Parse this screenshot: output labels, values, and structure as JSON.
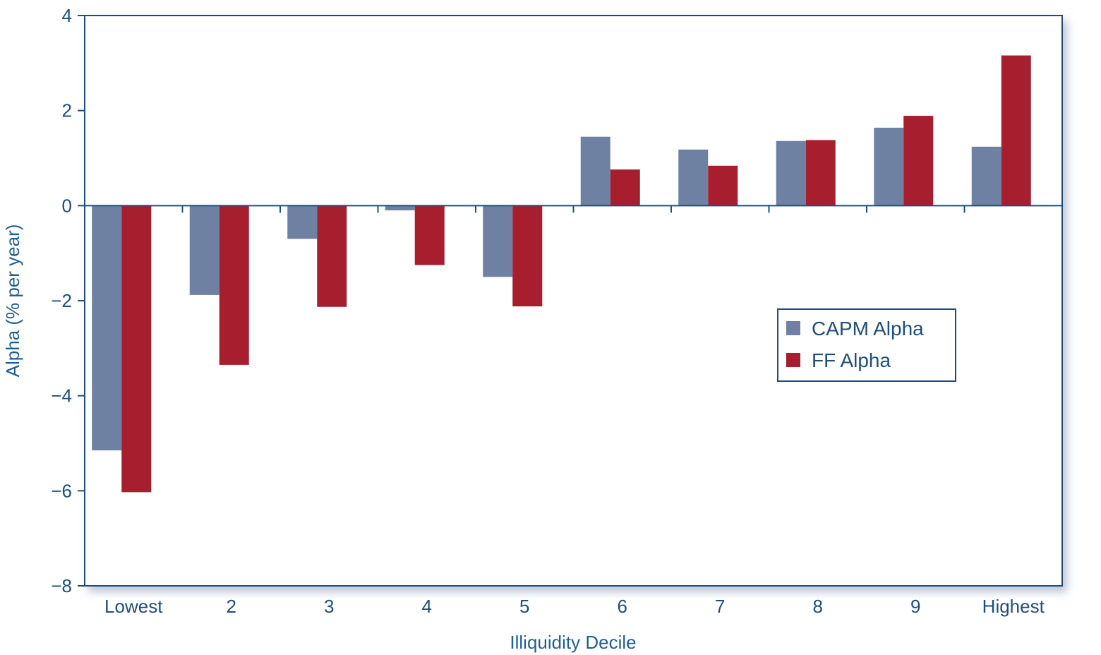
{
  "chart_data": {
    "type": "bar",
    "xlabel": "Illiquidity Decile",
    "ylabel": "Alpha (% per year)",
    "categories": [
      "Lowest",
      "2",
      "3",
      "4",
      "5",
      "6",
      "7",
      "8",
      "9",
      "Highest"
    ],
    "series": [
      {
        "name": "CAPM Alpha",
        "color": "#6f81a3",
        "values": [
          -5.15,
          -1.88,
          -0.7,
          -0.1,
          -1.5,
          1.45,
          1.18,
          1.36,
          1.64,
          1.24
        ]
      },
      {
        "name": "FF Alpha",
        "color": "#a71f2f",
        "values": [
          -6.03,
          -3.35,
          -2.13,
          -1.25,
          -2.12,
          0.76,
          0.84,
          1.38,
          1.89,
          3.16
        ]
      }
    ],
    "ylim": [
      -8,
      4
    ],
    "yticks": [
      4,
      2,
      0,
      -2,
      -4,
      -6,
      -8
    ],
    "ytick_labels": [
      "4",
      "2",
      "0",
      "−2",
      "−4",
      "−6",
      "−8"
    ],
    "legend_position": "right-middle",
    "grid": false,
    "colors": {
      "axis": "#1f4e79",
      "zero_line": "#1f4e79",
      "text": "#1f4e79"
    }
  }
}
